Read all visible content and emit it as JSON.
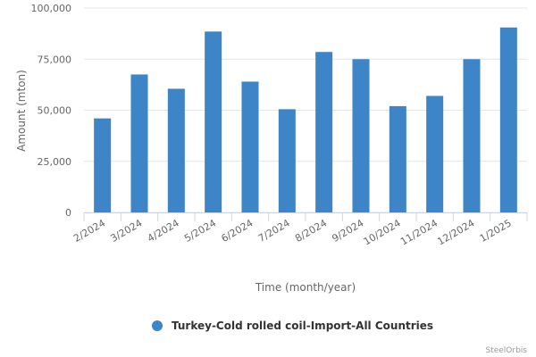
{
  "chart_data": {
    "type": "bar",
    "x_label": "Time (month/year)",
    "y_label": "Amount (mton)",
    "categories": [
      "2/2024",
      "3/2024",
      "4/2024",
      "5/2024",
      "6/2024",
      "7/2024",
      "8/2024",
      "9/2024",
      "10/2024",
      "11/2024",
      "12/2024",
      "1/2025"
    ],
    "series": [
      {
        "name": "Turkey-Cold rolled coil-Import-All Countries",
        "color": "#3d85c6",
        "values": [
          46000,
          67500,
          60500,
          88500,
          64000,
          50500,
          78500,
          75000,
          52000,
          57000,
          75000,
          90500
        ]
      }
    ],
    "ylim": [
      0,
      100000
    ],
    "yticks": [
      0,
      {
        "value": 25000,
        "label": "25,000"
      },
      {
        "value": 50000,
        "label": "50,000"
      },
      {
        "value": 75000,
        "label": "75,000"
      },
      {
        "value": 100000,
        "label": "100,000"
      }
    ],
    "grid": true,
    "legend": "bottom",
    "credits": "SteelOrbis"
  }
}
